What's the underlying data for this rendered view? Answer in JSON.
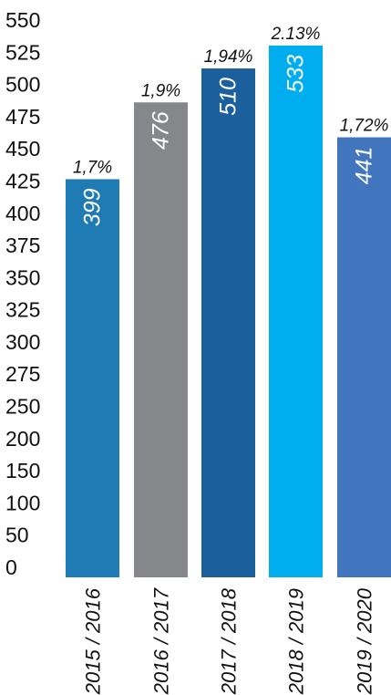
{
  "chart_data": {
    "type": "bar",
    "title": "",
    "xlabel": "",
    "ylabel": "",
    "ylim": [
      0,
      550
    ],
    "yticks": [
      0,
      50,
      100,
      150,
      200,
      250,
      275,
      300,
      325,
      350,
      375,
      400,
      425,
      450,
      475,
      500,
      525,
      550
    ],
    "grid": false,
    "legend": "none",
    "categories": [
      "2015 / 2016",
      "2016 / 2017",
      "2017 / 2018",
      "2018 / 2019",
      "2019 / 2020"
    ],
    "values": [
      399,
      476,
      510,
      533,
      441
    ],
    "percent_labels": [
      "1,7%",
      "1,9%",
      "1,94%",
      "2.13%",
      "1,72%"
    ],
    "colors": [
      "#1f7bb3",
      "#86878a",
      "#1c5f9d",
      "#00adee",
      "#4176bf"
    ]
  }
}
